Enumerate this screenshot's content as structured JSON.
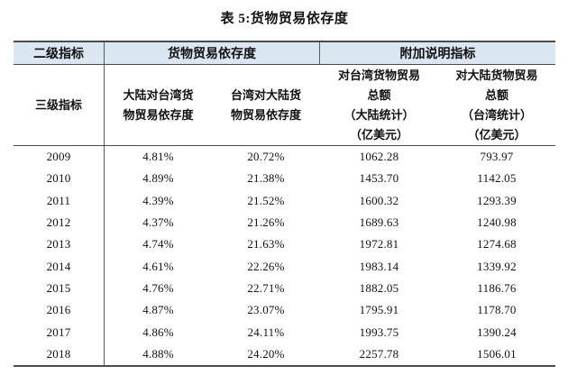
{
  "title": "表 5:货物贸易依存度",
  "colors": {
    "header_background": "#dae6f2",
    "border": "#4a4a4a",
    "text": "#111111"
  },
  "table": {
    "header_row1": {
      "level2_label": "二级指标",
      "goods_trade_dependence": "货物贸易依存度",
      "additional_indicators": "附加说明指标"
    },
    "header_row2": {
      "level3_label": "三级指标",
      "col2_lines": [
        "大陆对台湾货",
        "物贸易依存度"
      ],
      "col3_lines": [
        "台湾对大陆货",
        "物贸易依存度"
      ],
      "col4_lines": [
        "对台湾货物贸易",
        "总额",
        "（大陆统计）",
        "（亿美元）"
      ],
      "col5_lines": [
        "对大陆货物贸易",
        "总额",
        "（台湾统计）",
        "（亿美元）"
      ]
    },
    "rows": [
      [
        "2009",
        "4.81%",
        "20.72%",
        "1062.28",
        "793.97"
      ],
      [
        "2010",
        "4.89%",
        "21.38%",
        "1453.70",
        "1142.05"
      ],
      [
        "2011",
        "4.39%",
        "21.52%",
        "1600.32",
        "1293.39"
      ],
      [
        "2012",
        "4.37%",
        "21.26%",
        "1689.63",
        "1240.98"
      ],
      [
        "2013",
        "4.74%",
        "21.63%",
        "1972.81",
        "1274.68"
      ],
      [
        "2014",
        "4.61%",
        "22.26%",
        "1983.14",
        "1339.92"
      ],
      [
        "2015",
        "4.76%",
        "22.71%",
        "1882.05",
        "1186.76"
      ],
      [
        "2016",
        "4.87%",
        "23.07%",
        "1795.91",
        "1178.70"
      ],
      [
        "2017",
        "4.86%",
        "24.11%",
        "1993.75",
        "1390.24"
      ],
      [
        "2018",
        "4.88%",
        "24.20%",
        "2257.78",
        "1506.01"
      ]
    ]
  }
}
